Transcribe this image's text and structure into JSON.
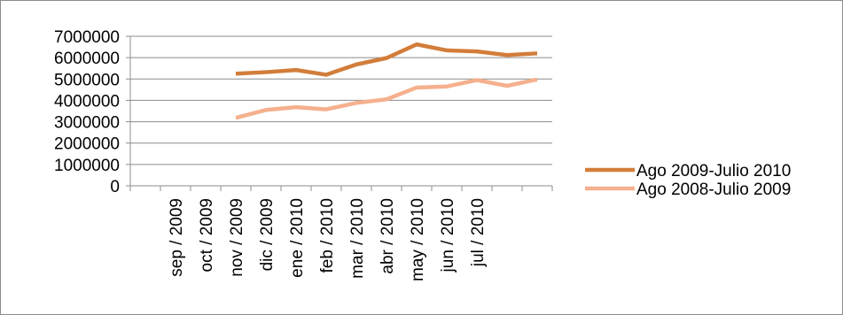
{
  "chart_data": {
    "type": "line",
    "title": "",
    "xlabel": "",
    "ylabel": "",
    "categories": [
      "",
      "sep / 2009",
      "oct / 2009",
      "nov / 2009",
      "dic / 2009",
      "ene / 2010",
      "feb / 2010",
      "mar / 2010",
      "abr / 2010",
      "may / 2010",
      "jun / 2010",
      "jul / 2010",
      "",
      ""
    ],
    "y_ticks": [
      "7000000",
      "6000000",
      "5000000",
      "4000000",
      "3000000",
      "2000000",
      "1000000",
      "0"
    ],
    "ylim": [
      0,
      7000000
    ],
    "grid": true,
    "legend_position": "right",
    "series": [
      {
        "name": "Ago 2009-Julio 2010",
        "color": "#D27D3A",
        "values": [
          null,
          null,
          null,
          5250000,
          5320000,
          5420000,
          5200000,
          5680000,
          5980000,
          6620000,
          6340000,
          6290000,
          6120000,
          6200000
        ]
      },
      {
        "name": "Ago 2008-Julio 2009",
        "color": "#F5B08E",
        "values": [
          null,
          null,
          null,
          3180000,
          3550000,
          3680000,
          3580000,
          3880000,
          4050000,
          4600000,
          4650000,
          4950000,
          4680000,
          4980000
        ]
      }
    ]
  }
}
